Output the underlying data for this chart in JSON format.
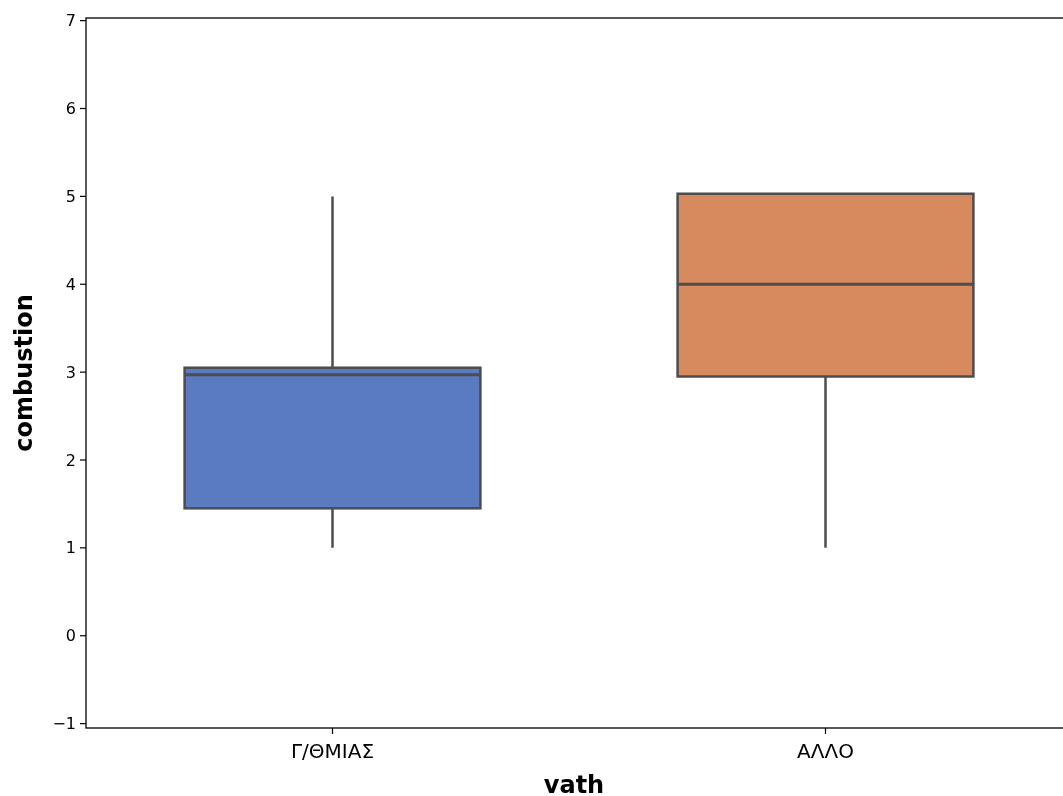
{
  "chart_data": {
    "type": "box",
    "xlabel": "vath",
    "ylabel": "combustion",
    "categories": [
      "Γ/ΘΜΙΑΣ",
      "ΑΛΛΟ"
    ],
    "colors": [
      "#5a7bbf",
      "#d88a5f"
    ],
    "ylim": [
      -1.05,
      7.03
    ],
    "yticks": [
      -1,
      0,
      1,
      2,
      3,
      4,
      5,
      6,
      7
    ],
    "grid": false,
    "boxes": [
      {
        "low": 1,
        "q1": 1.45,
        "median": 2.97,
        "q3": 3.05,
        "high": 5
      },
      {
        "low": 1,
        "q1": 2.95,
        "median": 4,
        "q3": 5.03,
        "high": 5
      }
    ]
  }
}
